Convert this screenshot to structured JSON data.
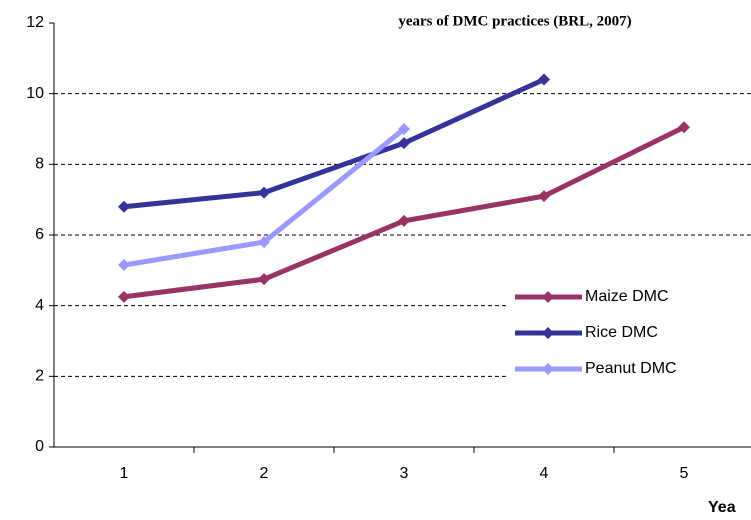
{
  "chart_data": {
    "type": "line",
    "title": "years of DMC practices (BRL, 2007)",
    "x_label": "Yea",
    "categories": [
      "1",
      "2",
      "3",
      "4",
      "5"
    ],
    "series": [
      {
        "name": "Maize DMC",
        "color": "#993366",
        "values": [
          4.25,
          4.75,
          6.4,
          7.1,
          9.05
        ]
      },
      {
        "name": "Rice DMC",
        "color": "#333399",
        "values": [
          6.8,
          7.2,
          8.6,
          10.4,
          null
        ]
      },
      {
        "name": "Peanut DMC",
        "color": "#9999ff",
        "values": [
          5.15,
          5.8,
          9.0,
          null,
          null
        ]
      }
    ],
    "ylim": [
      0,
      12
    ],
    "yticks": [
      0,
      2,
      4,
      6,
      8,
      10,
      12
    ],
    "grid": true,
    "legend": "right"
  }
}
